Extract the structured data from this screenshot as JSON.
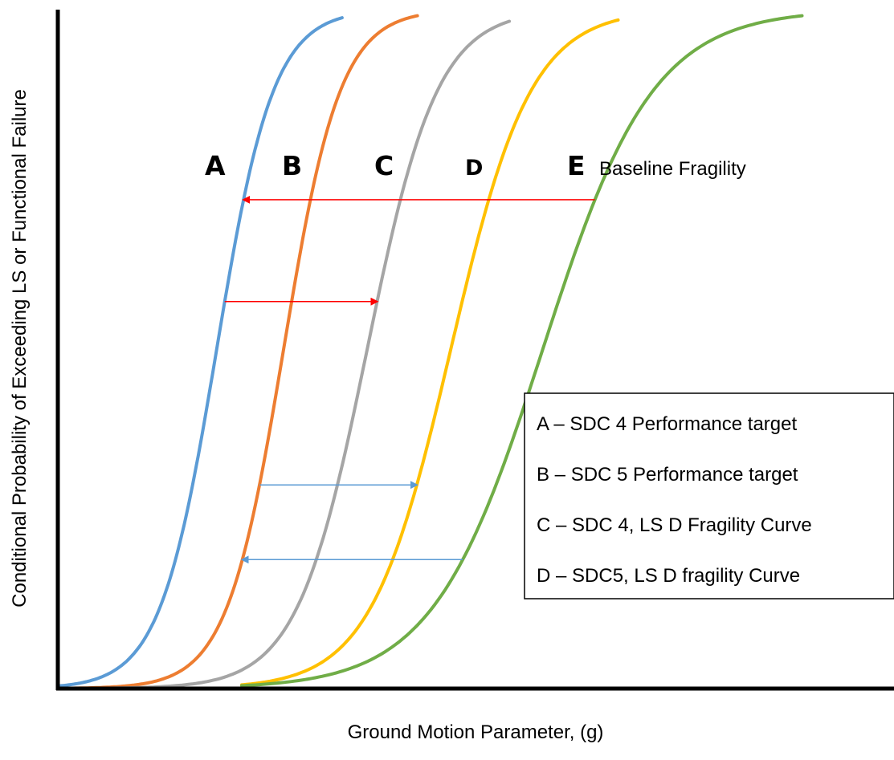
{
  "chart_data": {
    "type": "line",
    "title": "",
    "xlabel": "Ground Motion Parameter, (g)",
    "ylabel": "Conditional Probability of Exceeding LS or Functional Failure",
    "xlim": [
      0,
      1
    ],
    "ylim": [
      0,
      1
    ],
    "grid": false,
    "series": [
      {
        "label": "A",
        "color": "#5B9BD5",
        "median": 0.19,
        "spread": 0.034,
        "x_start": 0.0,
        "x_end": 0.34
      },
      {
        "label": "B",
        "color": "#ED7D31",
        "median": 0.27,
        "spread": 0.034,
        "x_start": 0.0,
        "x_end": 0.43
      },
      {
        "label": "C",
        "color": "#A5A5A5",
        "median": 0.37,
        "spread": 0.042,
        "x_start": 0.0,
        "x_end": 0.54
      },
      {
        "label": "D",
        "color": "#FFC000",
        "median": 0.47,
        "spread": 0.048,
        "x_start": 0.22,
        "x_end": 0.67
      },
      {
        "label": "E",
        "color": "#70AD47",
        "median": 0.58,
        "spread": 0.066,
        "x_start": 0.22,
        "x_end": 0.89
      }
    ],
    "annotations": {
      "note": "Baseline Fragility",
      "arrows": [
        {
          "color": "#FF0000",
          "from": "E",
          "to": "A",
          "y": 0.72
        },
        {
          "color": "#FF0000",
          "from": "A",
          "to": "C",
          "y": 0.57
        },
        {
          "color": "#5B9BD5",
          "from": "B",
          "to": "D",
          "y": 0.3
        },
        {
          "color": "#5B9BD5",
          "from": "E",
          "to": "B",
          "y": 0.19
        }
      ]
    },
    "legend": {
      "position": "right",
      "entries": [
        "A – SDC 4 Performance target",
        "B – SDC 5 Performance target",
        "C – SDC 4, LS D Fragility Curve",
        "D – SDC5, LS D fragility Curve"
      ]
    }
  }
}
